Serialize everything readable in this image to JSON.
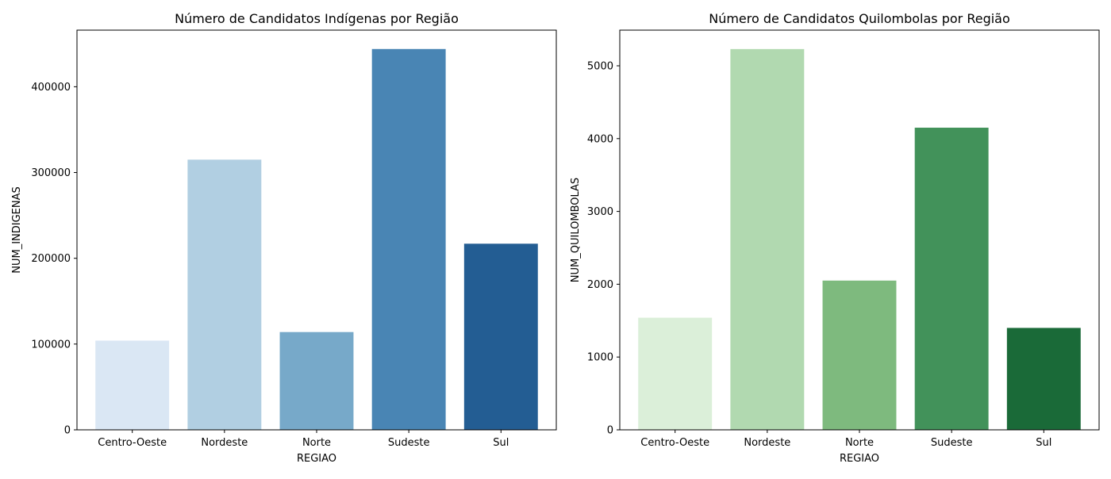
{
  "chart_data": [
    {
      "type": "bar",
      "title": "Número de Candidatos Indígenas por Região",
      "xlabel": "REGIAO",
      "ylabel": "NUM_INDIGENAS",
      "categories": [
        "Centro-Oeste",
        "Nordeste",
        "Norte",
        "Sudeste",
        "Sul"
      ],
      "values": [
        104000,
        315000,
        114000,
        444000,
        217000
      ],
      "ylim": [
        0,
        466000
      ],
      "yticks": [
        0,
        100000,
        200000,
        300000,
        400000
      ],
      "colors": [
        "#dae7f4",
        "#b1cfe2",
        "#77a9c9",
        "#4985b4",
        "#235d93"
      ],
      "grid": false,
      "legend": "none"
    },
    {
      "type": "bar",
      "title": "Número de Candidatos Quilombolas por Região",
      "xlabel": "REGIAO",
      "ylabel": "NUM_QUILOMBOLAS",
      "categories": [
        "Centro-Oeste",
        "Nordeste",
        "Norte",
        "Sudeste",
        "Sul"
      ],
      "values": [
        1540,
        5230,
        2050,
        4150,
        1400
      ],
      "ylim": [
        0,
        5490
      ],
      "yticks": [
        0,
        1000,
        2000,
        3000,
        4000,
        5000
      ],
      "colors": [
        "#dbefd9",
        "#b1d9b0",
        "#7eba7e",
        "#42925a",
        "#1a6a38"
      ],
      "grid": false,
      "legend": "none"
    }
  ]
}
